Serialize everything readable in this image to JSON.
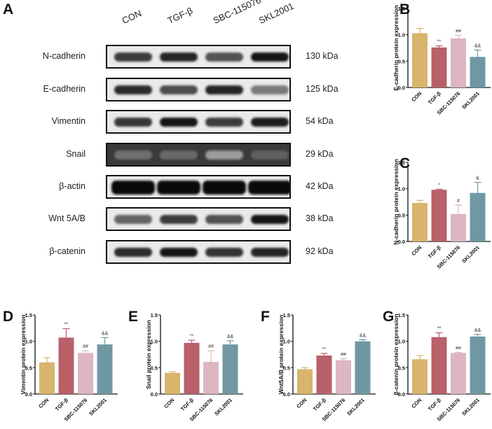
{
  "figure": {
    "panels": [
      "A",
      "B",
      "C",
      "D",
      "E",
      "F",
      "G"
    ]
  },
  "blot": {
    "panel_label": "A",
    "lanes": [
      "CON",
      "TGF-β",
      "SBC-115076",
      "SKL2001"
    ],
    "rows": [
      {
        "protein": "N-cadherin",
        "kda": "130 kDa",
        "dark_bg": false,
        "intensity": [
          0.78,
          0.88,
          0.68,
          0.95
        ]
      },
      {
        "protein": "E-cadherin",
        "kda": "125 kDa",
        "dark_bg": false,
        "intensity": [
          0.85,
          0.7,
          0.88,
          0.5
        ]
      },
      {
        "protein": "Vimentin",
        "kda": "54 kDa",
        "dark_bg": false,
        "intensity": [
          0.8,
          0.95,
          0.78,
          0.92
        ]
      },
      {
        "protein": "Snail",
        "kda": "29 kDa",
        "dark_bg": true,
        "intensity": [
          0.55,
          0.58,
          0.35,
          0.62
        ]
      },
      {
        "protein": "β-actin",
        "kda": "42 kDa",
        "dark_bg": false,
        "intensity": [
          1.0,
          1.0,
          1.0,
          1.0
        ]
      },
      {
        "protein": "Wnt 5A/B",
        "kda": "38 kDa",
        "dark_bg": false,
        "intensity": [
          0.6,
          0.78,
          0.68,
          0.95
        ]
      },
      {
        "protein": "β-catenin",
        "kda": "92 kDa",
        "dark_bg": false,
        "intensity": [
          0.85,
          0.95,
          0.82,
          0.88
        ]
      }
    ]
  },
  "colors": {
    "CON": "#d8b46c",
    "TGF-β": "#b9606a",
    "SBC-115076": "#ddb5c3",
    "SKL2001": "#6f98a2",
    "axis": "#111111"
  },
  "chart_data": [
    {
      "panel": "B",
      "type": "bar",
      "title": "",
      "xlabel": "",
      "ylabel": "E-cadherin protein expression",
      "categories": [
        "CON",
        "TGF-β",
        "SBC-115076",
        "SKL2001"
      ],
      "values": [
        1.03,
        0.76,
        0.93,
        0.58
      ],
      "errors": [
        0.09,
        0.03,
        0.06,
        0.13
      ],
      "annotations": [
        "",
        "**",
        "##",
        "&&"
      ],
      "ylim": [
        0,
        1.5
      ],
      "yticks": [
        "0.0",
        "0.5",
        "1.0",
        "1.5"
      ],
      "grid": false,
      "legend": "none"
    },
    {
      "panel": "C",
      "type": "bar",
      "title": "",
      "xlabel": "",
      "ylabel": "N-cadherin protein expression",
      "categories": [
        "CON",
        "TGF-β",
        "SBC-115076",
        "SKL2001"
      ],
      "values": [
        0.73,
        0.98,
        0.52,
        0.92
      ],
      "errors": [
        0.05,
        0.01,
        0.17,
        0.2
      ],
      "annotations": [
        "",
        "*",
        "#",
        "&"
      ],
      "ylim": [
        0,
        1.5
      ],
      "yticks": [
        "0.0",
        "0.5",
        "1.0",
        "1.5"
      ],
      "grid": false,
      "legend": "none"
    },
    {
      "panel": "D",
      "type": "bar",
      "title": "",
      "xlabel": "",
      "ylabel": "Vimentin protein expression",
      "categories": [
        "CON",
        "TGF-β",
        "SBC-115076",
        "SKL2001"
      ],
      "values": [
        0.6,
        1.07,
        0.78,
        0.94
      ],
      "errors": [
        0.09,
        0.17,
        0.04,
        0.13
      ],
      "annotations": [
        "",
        "**",
        "##",
        "&&"
      ],
      "ylim": [
        0,
        1.5
      ],
      "yticks": [
        "0.0",
        "0.5",
        "1.0",
        "1.5"
      ],
      "grid": false,
      "legend": "none"
    },
    {
      "panel": "E",
      "type": "bar",
      "title": "",
      "xlabel": "",
      "ylabel": "Snail protein expression",
      "categories": [
        "CON",
        "TGF-β",
        "SBC-115076",
        "SKL2001"
      ],
      "values": [
        0.4,
        0.97,
        0.61,
        0.94
      ],
      "errors": [
        0.02,
        0.05,
        0.21,
        0.07
      ],
      "annotations": [
        "",
        "**",
        "##",
        "&&"
      ],
      "ylim": [
        0,
        1.5
      ],
      "yticks": [
        "0.0",
        "0.5",
        "1.0",
        "1.5"
      ],
      "grid": false,
      "legend": "none"
    },
    {
      "panel": "F",
      "type": "bar",
      "title": "",
      "xlabel": "",
      "ylabel": "Wnt5A/B protein expression",
      "categories": [
        "CON",
        "TGF-β",
        "SBC-115076",
        "SKL2001"
      ],
      "values": [
        0.47,
        0.73,
        0.64,
        1.0
      ],
      "errors": [
        0.03,
        0.04,
        0.03,
        0.03
      ],
      "annotations": [
        "",
        "**",
        "##",
        "&&"
      ],
      "ylim": [
        0,
        1.5
      ],
      "yticks": [
        "0.0",
        "0.5",
        "1.0",
        "1.5"
      ],
      "grid": false,
      "legend": "none"
    },
    {
      "panel": "G",
      "type": "bar",
      "title": "",
      "xlabel": "",
      "ylabel": "β-catenin protein expression",
      "categories": [
        "CON",
        "TGF-β",
        "SBC-115076",
        "SKL2001"
      ],
      "values": [
        0.66,
        1.08,
        0.78,
        1.09
      ],
      "errors": [
        0.07,
        0.08,
        0.01,
        0.04
      ],
      "annotations": [
        "",
        "**",
        "##",
        "&&"
      ],
      "ylim": [
        0,
        1.5
      ],
      "yticks": [
        "0.0",
        "0.5",
        "1.0",
        "1.5"
      ],
      "grid": false,
      "legend": "none"
    }
  ]
}
